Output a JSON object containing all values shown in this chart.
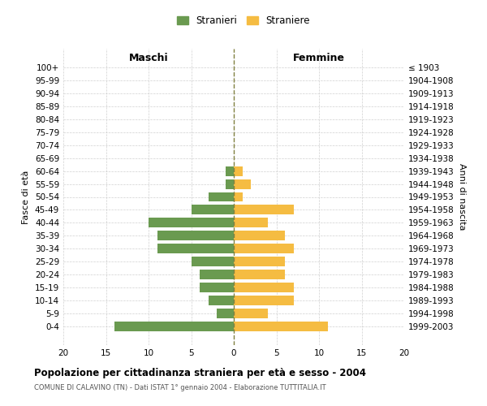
{
  "age_groups": [
    "100+",
    "95-99",
    "90-94",
    "85-89",
    "80-84",
    "75-79",
    "70-74",
    "65-69",
    "60-64",
    "55-59",
    "50-54",
    "45-49",
    "40-44",
    "35-39",
    "30-34",
    "25-29",
    "20-24",
    "15-19",
    "10-14",
    "5-9",
    "0-4"
  ],
  "birth_years": [
    "≤ 1903",
    "1904-1908",
    "1909-1913",
    "1914-1918",
    "1919-1923",
    "1924-1928",
    "1929-1933",
    "1934-1938",
    "1939-1943",
    "1944-1948",
    "1949-1953",
    "1954-1958",
    "1959-1963",
    "1964-1968",
    "1969-1973",
    "1974-1978",
    "1979-1983",
    "1984-1988",
    "1989-1993",
    "1994-1998",
    "1999-2003"
  ],
  "males": [
    0,
    0,
    0,
    0,
    0,
    0,
    0,
    0,
    1,
    1,
    3,
    5,
    10,
    9,
    9,
    5,
    4,
    4,
    3,
    2,
    14
  ],
  "females": [
    0,
    0,
    0,
    0,
    0,
    0,
    0,
    0,
    1,
    2,
    1,
    7,
    4,
    6,
    7,
    6,
    6,
    7,
    7,
    4,
    11
  ],
  "male_color": "#6a9a50",
  "female_color": "#f5bc42",
  "xlim": 20,
  "title": "Popolazione per cittadinanza straniera per età e sesso - 2004",
  "subtitle": "COMUNE DI CALAVINO (TN) - Dati ISTAT 1° gennaio 2004 - Elaborazione TUTTITALIA.IT",
  "left_label": "Maschi",
  "right_label": "Femmine",
  "ylabel": "Fasce di età",
  "ylabel_right": "Anni di nascita",
  "legend_male": "Stranieri",
  "legend_female": "Straniere",
  "bg_color": "#ffffff",
  "grid_color": "#cccccc",
  "center_line_color": "#808040",
  "bar_height": 0.75
}
